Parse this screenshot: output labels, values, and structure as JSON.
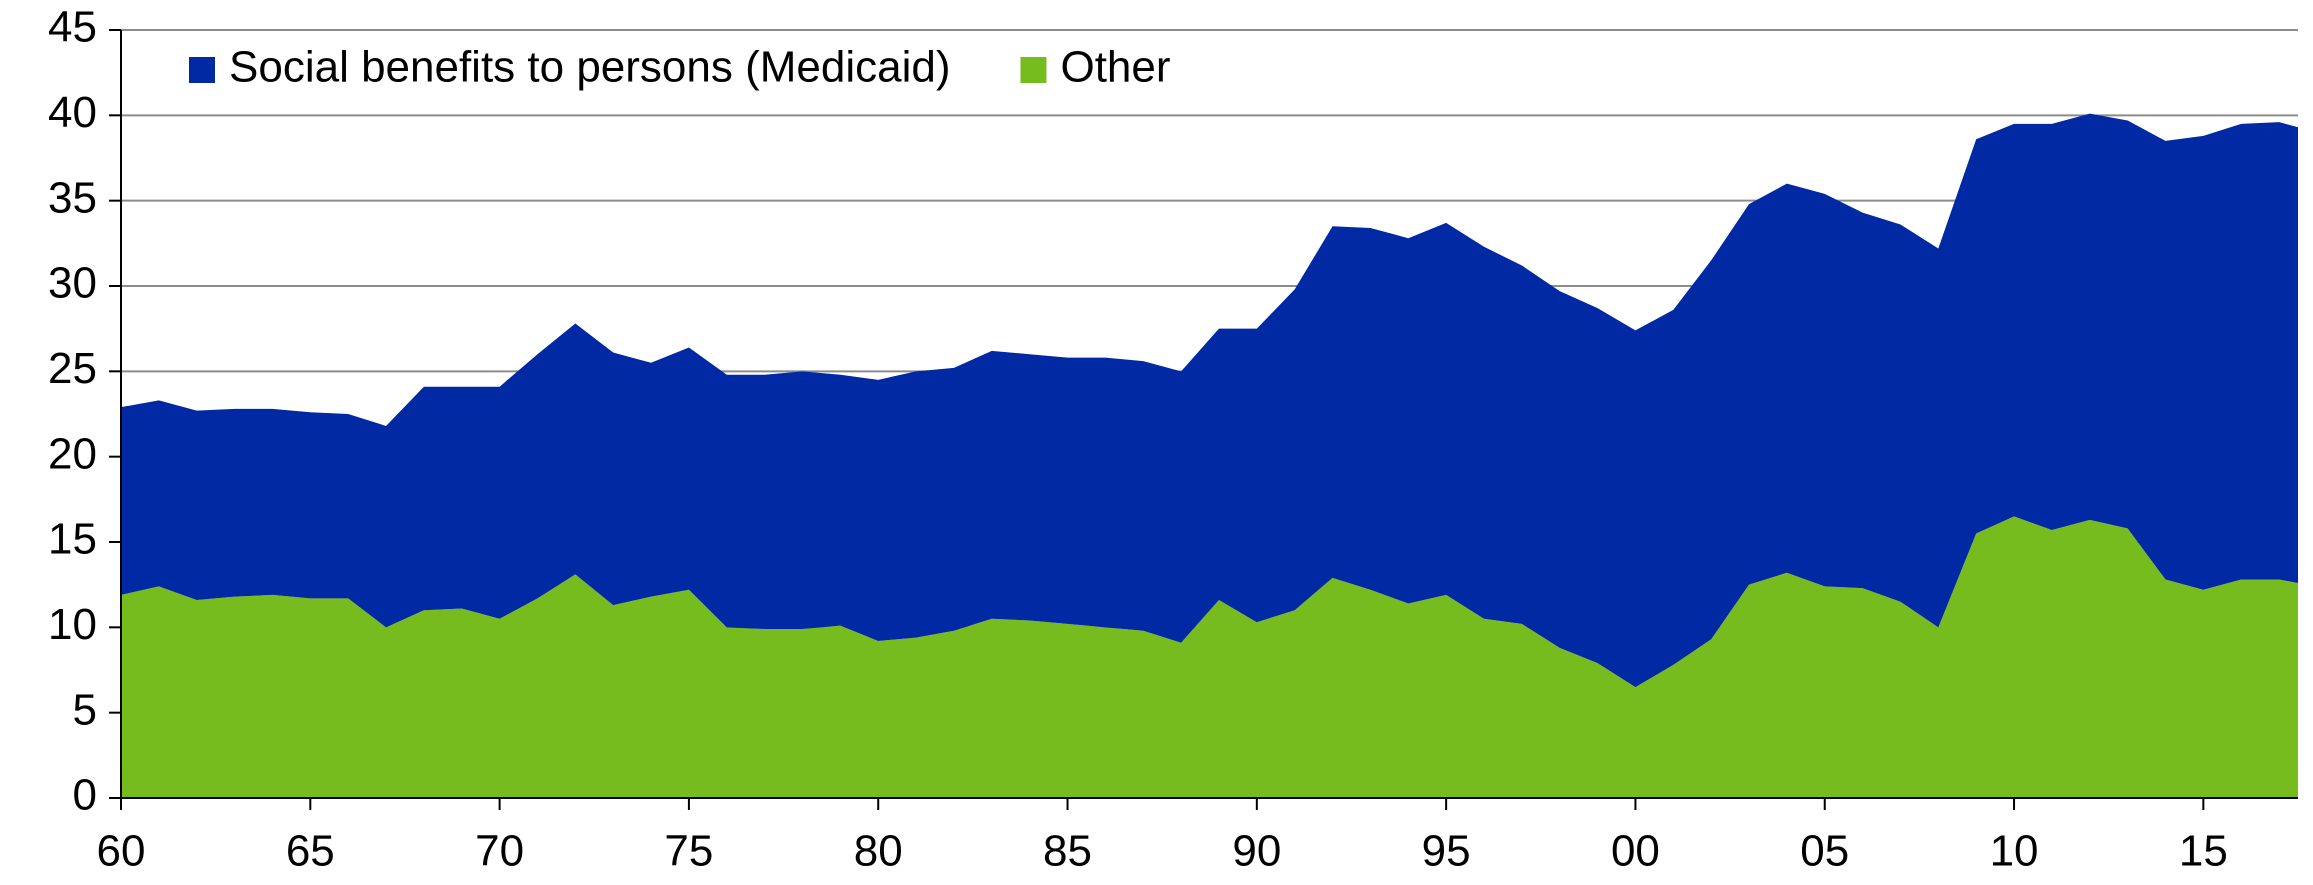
{
  "chart_data": {
    "type": "stacked_area",
    "x": [
      1960,
      1961,
      1962,
      1963,
      1964,
      1965,
      1966,
      1967,
      1968,
      1969,
      1970,
      1971,
      1972,
      1973,
      1974,
      1975,
      1976,
      1977,
      1978,
      1979,
      1980,
      1981,
      1982,
      1983,
      1984,
      1985,
      1986,
      1987,
      1988,
      1989,
      1990,
      1991,
      1992,
      1993,
      1994,
      1995,
      1996,
      1997,
      1998,
      1999,
      2000,
      2001,
      2002,
      2003,
      2004,
      2005,
      2006,
      2007,
      2008,
      2009,
      2010,
      2011,
      2012,
      2013,
      2014,
      2015,
      2016,
      2017,
      2017.5
    ],
    "series": [
      {
        "name": "Social benefits to persons (Medicaid)",
        "color": "#0029a3",
        "values": [
          11.0,
          10.9,
          11.1,
          11.0,
          10.9,
          10.9,
          10.8,
          11.8,
          13.1,
          13.0,
          13.6,
          14.3,
          14.7,
          14.8,
          13.7,
          14.2,
          14.8,
          14.9,
          15.1,
          14.7,
          15.3,
          15.6,
          15.4,
          15.7,
          15.6,
          15.6,
          15.8,
          15.8,
          15.9,
          15.9,
          17.2,
          18.8,
          20.6,
          21.2,
          21.4,
          21.8,
          21.8,
          21.0,
          20.9,
          20.8,
          20.9,
          20.8,
          22.2,
          22.3,
          22.8,
          23.0,
          22.0,
          22.1,
          22.2,
          23.1,
          23.0,
          23.8,
          23.8,
          23.9,
          25.7,
          26.6,
          26.7,
          26.8,
          26.7
        ]
      },
      {
        "name": "Other",
        "color": "#77bc1f",
        "values": [
          11.9,
          12.4,
          11.6,
          11.8,
          11.9,
          11.7,
          11.7,
          10.0,
          11.0,
          11.1,
          10.5,
          11.7,
          13.1,
          11.3,
          11.8,
          12.2,
          10.0,
          9.9,
          9.9,
          10.1,
          9.2,
          9.4,
          9.8,
          10.5,
          10.4,
          10.2,
          10.0,
          9.8,
          9.1,
          11.6,
          10.3,
          11.0,
          12.9,
          12.2,
          11.4,
          11.9,
          10.5,
          10.2,
          8.8,
          7.9,
          6.5,
          7.8,
          9.3,
          12.5,
          13.2,
          12.4,
          12.3,
          11.5,
          10.0,
          15.5,
          16.5,
          15.7,
          16.3,
          15.8,
          12.8,
          12.2,
          12.8,
          12.8,
          12.6
        ]
      }
    ],
    "xlim": [
      1960,
      2017.5
    ],
    "xticks": [
      {
        "value": 1960,
        "label": "60"
      },
      {
        "value": 1965,
        "label": "65"
      },
      {
        "value": 1970,
        "label": "70"
      },
      {
        "value": 1975,
        "label": "75"
      },
      {
        "value": 1980,
        "label": "80"
      },
      {
        "value": 1985,
        "label": "85"
      },
      {
        "value": 1990,
        "label": "90"
      },
      {
        "value": 1995,
        "label": "95"
      },
      {
        "value": 2000,
        "label": "00"
      },
      {
        "value": 2005,
        "label": "05"
      },
      {
        "value": 2010,
        "label": "10"
      },
      {
        "value": 2015,
        "label": "15"
      }
    ],
    "ylim": [
      0,
      45
    ],
    "yticks": [
      0,
      5,
      10,
      15,
      20,
      25,
      30,
      35,
      40,
      45
    ],
    "grid": true,
    "legend": "top-left"
  }
}
